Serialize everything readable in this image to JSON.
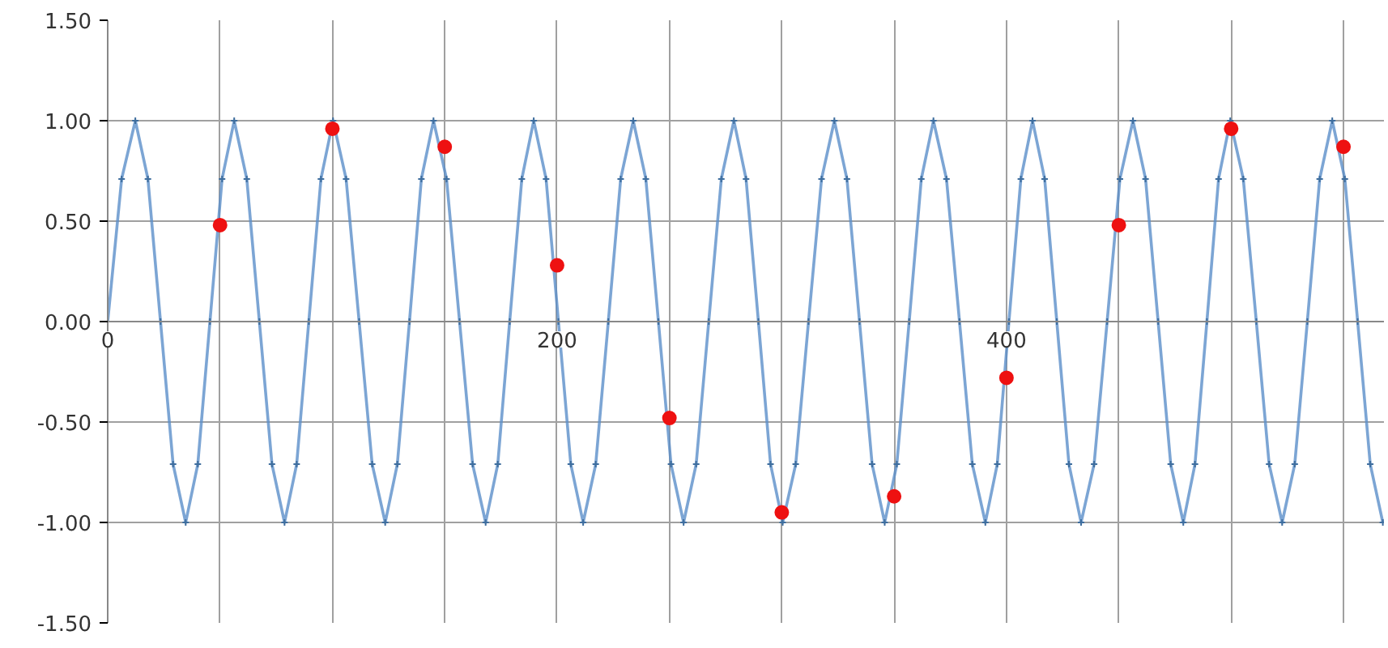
{
  "chart_data": {
    "type": "line",
    "grid": true,
    "xlim": [
      0,
      568
    ],
    "xticks": [
      0,
      {
        "value": 50,
        "label": null
      },
      {
        "value": 100,
        "label": null
      },
      {
        "value": 150,
        "label": null
      },
      200,
      {
        "value": 250,
        "label": null
      },
      {
        "value": 300,
        "label": null
      },
      {
        "value": 350,
        "label": null
      },
      400,
      {
        "value": 450,
        "label": null
      },
      {
        "value": 500,
        "label": null
      },
      {
        "value": 550,
        "label": null
      }
    ],
    "ylim": [
      -1.5,
      1.5
    ],
    "yticks": [
      {
        "value": -1.5,
        "label": "-1.50"
      },
      {
        "value": -1.0,
        "label": "-1.00"
      },
      {
        "value": -0.5,
        "label": "-0.50"
      },
      {
        "value": 0,
        "label": "0.00"
      },
      {
        "value": 0.5,
        "label": "0.50"
      },
      {
        "value": 1.0,
        "label": "1.00"
      },
      {
        "value": 1.5,
        "label": "1.50"
      }
    ],
    "series": [
      {
        "marker": "cross",
        "color": "#5b8fc9",
        "x": [
          0,
          6.2,
          12.3,
          17.9,
          23.5,
          29.1,
          34.7,
          40.1,
          45.5,
          50.9,
          56.3,
          61.9,
          67.5,
          73.1,
          78.7,
          84.1,
          89.5,
          94.9,
          100.3,
          106.1,
          111.9,
          117.7,
          123.5,
          128.9,
          134.3,
          139.6,
          145,
          150.8,
          156.6,
          162.4,
          168.2,
          173.6,
          178.9,
          184.3,
          189.6,
          195.1,
          200.6,
          206.1,
          211.6,
          217.2,
          222.8,
          228.3,
          233.9,
          239.5,
          245.1,
          250.7,
          256.3,
          261.9,
          267.5,
          273.1,
          278.7,
          284.1,
          289.6,
          295,
          300.4,
          306.2,
          311.9,
          317.7,
          323.4,
          329,
          334.6,
          340.2,
          345.8,
          351.2,
          356.7,
          362.1,
          367.5,
          373.3,
          379.1,
          384.8,
          390.6,
          395.9,
          401.1,
          406.4,
          411.6,
          417,
          422.4,
          427.8,
          433.2,
          439,
          444.8,
          450.5,
          456.3,
          461.9,
          467.5,
          473.1,
          478.7,
          483.9,
          489.2,
          494.4,
          499.6,
          505.4,
          511.2,
          516.9,
          522.7,
          528.3,
          533.9,
          539.4,
          545,
          550.6,
          556.3,
          561.9,
          567.5
        ],
        "values": [
          0,
          0.71,
          1,
          0.71,
          0,
          -0.71,
          -1,
          -0.71,
          0,
          0.71,
          1,
          0.71,
          0,
          -0.71,
          -1,
          -0.71,
          0,
          0.71,
          1,
          0.71,
          0,
          -0.71,
          -1,
          -0.71,
          0,
          0.71,
          1,
          0.71,
          0,
          -0.71,
          -1,
          -0.71,
          0,
          0.71,
          1,
          0.71,
          0,
          -0.71,
          -1,
          -0.71,
          0,
          0.71,
          1,
          0.71,
          0,
          -0.71,
          -1,
          -0.71,
          0,
          0.71,
          1,
          0.71,
          0,
          -0.71,
          -1,
          -0.71,
          0,
          0.71,
          1,
          0.71,
          0,
          -0.71,
          -1,
          -0.71,
          0,
          0.71,
          1,
          0.71,
          0,
          -0.71,
          -1,
          -0.71,
          0,
          0.71,
          1,
          0.71,
          0,
          -0.71,
          -1,
          -0.71,
          0,
          0.71,
          1,
          0.71,
          0,
          -0.71,
          -1,
          -0.71,
          0,
          0.71,
          1,
          0.71,
          0,
          -0.71,
          -1,
          -0.71,
          0,
          0.71,
          1,
          0.71,
          0,
          -0.71,
          -1
        ]
      },
      {
        "type": "scatter",
        "marker": "circle",
        "color": "#ee1111",
        "x": [
          50,
          100,
          150,
          200,
          250,
          300,
          350,
          400,
          450,
          500,
          550
        ],
        "values": [
          0.48,
          0.96,
          0.87,
          0.28,
          -0.48,
          -0.95,
          -0.87,
          -0.28,
          0.48,
          0.96,
          0.87
        ]
      }
    ]
  }
}
